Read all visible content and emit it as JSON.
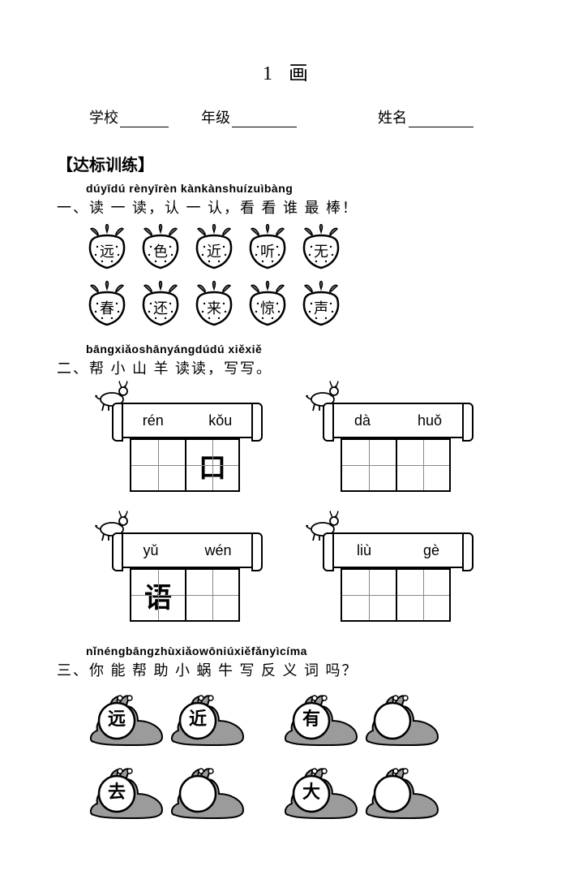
{
  "title_number": "1",
  "title_char": "画",
  "info": {
    "school_label": "学校",
    "grade_label": "年级",
    "name_label": "姓名",
    "underline_w_small": 60,
    "underline_w_med": 80
  },
  "section_header": "【达标训练】",
  "q1": {
    "pinyin": "dúyīdú rènyīrèn kànkànshuízuìbàng",
    "text": "一、读 一 读，认 一 认，看 看 谁 最 棒！",
    "row1": [
      "远",
      "色",
      "近",
      "听",
      "无"
    ],
    "row2": [
      "春",
      "还",
      "来",
      "惊",
      "声"
    ]
  },
  "q2": {
    "pinyin": "bāngxiǎoshānyángdúdú xiěxiě",
    "text": "二、帮 小 山 羊 读读，写写。",
    "cards": [
      {
        "py": [
          "rén",
          "kǒu"
        ],
        "chars": [
          "",
          "口"
        ]
      },
      {
        "py": [
          "dà",
          "huǒ"
        ],
        "chars": [
          "",
          ""
        ]
      },
      {
        "py": [
          "yǔ",
          "wén"
        ],
        "chars": [
          "语",
          ""
        ]
      },
      {
        "py": [
          "liù",
          "gè"
        ],
        "chars": [
          "",
          ""
        ]
      }
    ]
  },
  "q3": {
    "pinyin": "nǐnéngbāngzhùxiǎowōniúxiěfǎnyìcíma",
    "text": "三、你 能 帮 助 小 蜗 牛 写 反 义 词 吗？",
    "pairs": [
      [
        {
          "a": "远",
          "b": "近"
        },
        {
          "a": "有",
          "b": ""
        }
      ],
      [
        {
          "a": "去",
          "b": ""
        },
        {
          "a": "大",
          "b": ""
        }
      ]
    ]
  },
  "colors": {
    "stroke": "#000000",
    "fruit_fill": "#ffffff",
    "leaf_fill": "#888888",
    "snail_body": "#9b9b9b",
    "snail_shell": "#d6d6d6"
  }
}
